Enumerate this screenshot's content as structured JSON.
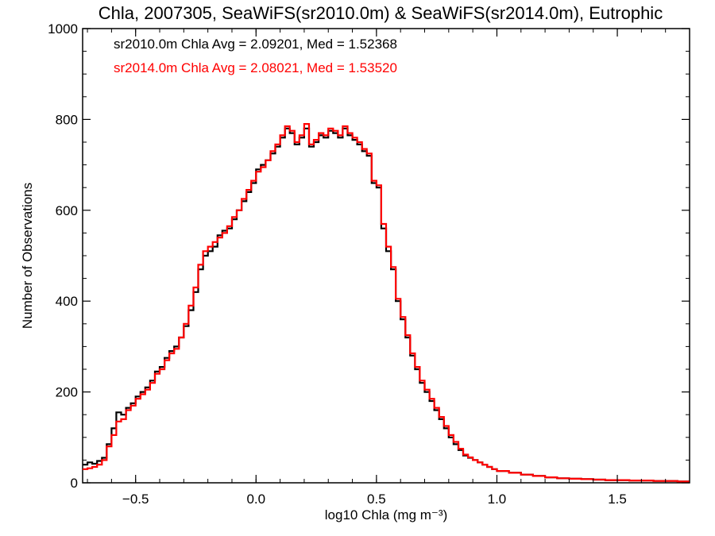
{
  "chart_data": {
    "type": "line",
    "title": "Chla, 2007305, SeaWiFS(sr2010.0m) & SeaWiFS(sr2014.0m), Eutrophic",
    "xlabel": "log10 Chla (mg m⁻³)",
    "ylabel": "Number of Observations",
    "xlim": [
      -0.72,
      1.8
    ],
    "ylim": [
      0,
      1000
    ],
    "xticks": [
      -0.5,
      0.0,
      0.5,
      1.0,
      1.5
    ],
    "xtick_labels": [
      "−0.5",
      "0.0",
      "0.5",
      "1.0",
      "1.5"
    ],
    "yticks": [
      0,
      200,
      400,
      600,
      800,
      1000
    ],
    "ytick_labels": [
      "0",
      "200",
      "400",
      "600",
      "800",
      "1000"
    ],
    "grid": false,
    "annotations": [
      {
        "text": "sr2010.0m Chla Avg = 2.09201, Med = 1.52368",
        "color": "#000000"
      },
      {
        "text": "sr2014.0m Chla Avg = 2.08021, Med = 1.53520",
        "color": "#ff0000"
      }
    ],
    "series": [
      {
        "color": "#000000",
        "x": [
          -0.72,
          -0.7,
          -0.68,
          -0.66,
          -0.64,
          -0.62,
          -0.6,
          -0.58,
          -0.56,
          -0.54,
          -0.52,
          -0.5,
          -0.48,
          -0.46,
          -0.44,
          -0.42,
          -0.4,
          -0.38,
          -0.36,
          -0.34,
          -0.32,
          -0.3,
          -0.28,
          -0.26,
          -0.24,
          -0.22,
          -0.2,
          -0.18,
          -0.16,
          -0.14,
          -0.12,
          -0.1,
          -0.08,
          -0.06,
          -0.04,
          -0.02,
          0.0,
          0.02,
          0.04,
          0.06,
          0.08,
          0.1,
          0.12,
          0.14,
          0.16,
          0.18,
          0.2,
          0.22,
          0.24,
          0.26,
          0.28,
          0.3,
          0.32,
          0.34,
          0.36,
          0.38,
          0.4,
          0.42,
          0.44,
          0.46,
          0.48,
          0.5,
          0.52,
          0.54,
          0.56,
          0.58,
          0.6,
          0.62,
          0.64,
          0.66,
          0.68,
          0.7,
          0.72,
          0.74,
          0.76,
          0.78,
          0.8,
          0.82,
          0.84,
          0.86,
          0.88,
          0.9,
          0.92,
          0.94,
          0.96,
          0.98,
          1.0,
          1.05,
          1.1,
          1.15,
          1.2,
          1.25,
          1.3,
          1.35,
          1.4,
          1.45,
          1.5,
          1.55,
          1.6,
          1.65,
          1.7,
          1.75,
          1.8
        ],
        "y": [
          40,
          45,
          42,
          48,
          55,
          85,
          120,
          155,
          150,
          165,
          175,
          190,
          200,
          210,
          225,
          245,
          255,
          275,
          290,
          300,
          320,
          345,
          380,
          420,
          470,
          500,
          510,
          520,
          545,
          555,
          560,
          580,
          600,
          620,
          640,
          660,
          690,
          700,
          710,
          725,
          740,
          760,
          780,
          770,
          745,
          760,
          780,
          740,
          750,
          765,
          760,
          775,
          770,
          760,
          780,
          765,
          755,
          745,
          730,
          720,
          660,
          650,
          560,
          510,
          470,
          400,
          360,
          320,
          280,
          250,
          220,
          200,
          180,
          160,
          140,
          120,
          100,
          85,
          72,
          60,
          55,
          50,
          45,
          40,
          35,
          30,
          26,
          22,
          18,
          15,
          12,
          10,
          9,
          8,
          7,
          6,
          6,
          5,
          5,
          4,
          4,
          3,
          3
        ]
      },
      {
        "color": "#ff0000",
        "x": [
          -0.72,
          -0.7,
          -0.68,
          -0.66,
          -0.64,
          -0.62,
          -0.6,
          -0.58,
          -0.56,
          -0.54,
          -0.52,
          -0.5,
          -0.48,
          -0.46,
          -0.44,
          -0.42,
          -0.4,
          -0.38,
          -0.36,
          -0.34,
          -0.32,
          -0.3,
          -0.28,
          -0.26,
          -0.24,
          -0.22,
          -0.2,
          -0.18,
          -0.16,
          -0.14,
          -0.12,
          -0.1,
          -0.08,
          -0.06,
          -0.04,
          -0.02,
          0.0,
          0.02,
          0.04,
          0.06,
          0.08,
          0.1,
          0.12,
          0.14,
          0.16,
          0.18,
          0.2,
          0.22,
          0.24,
          0.26,
          0.28,
          0.3,
          0.32,
          0.34,
          0.36,
          0.38,
          0.4,
          0.42,
          0.44,
          0.46,
          0.48,
          0.5,
          0.52,
          0.54,
          0.56,
          0.58,
          0.6,
          0.62,
          0.64,
          0.66,
          0.68,
          0.7,
          0.72,
          0.74,
          0.76,
          0.78,
          0.8,
          0.82,
          0.84,
          0.86,
          0.88,
          0.9,
          0.92,
          0.94,
          0.96,
          0.98,
          1.0,
          1.05,
          1.1,
          1.15,
          1.2,
          1.25,
          1.3,
          1.35,
          1.4,
          1.45,
          1.5,
          1.55,
          1.6,
          1.65,
          1.7,
          1.75,
          1.8
        ],
        "y": [
          30,
          32,
          35,
          40,
          50,
          80,
          105,
          135,
          140,
          160,
          170,
          185,
          195,
          205,
          220,
          240,
          250,
          270,
          285,
          295,
          320,
          350,
          390,
          430,
          480,
          510,
          520,
          530,
          540,
          550,
          565,
          585,
          600,
          625,
          645,
          665,
          685,
          695,
          710,
          730,
          745,
          765,
          785,
          775,
          750,
          765,
          790,
          745,
          755,
          770,
          765,
          780,
          775,
          765,
          785,
          770,
          760,
          750,
          735,
          725,
          665,
          655,
          570,
          520,
          475,
          405,
          365,
          325,
          285,
          255,
          225,
          205,
          185,
          165,
          145,
          125,
          105,
          90,
          75,
          62,
          56,
          50,
          45,
          40,
          35,
          30,
          26,
          22,
          18,
          15,
          12,
          10,
          9,
          8,
          7,
          6,
          6,
          5,
          5,
          4,
          4,
          3,
          3
        ]
      }
    ]
  }
}
